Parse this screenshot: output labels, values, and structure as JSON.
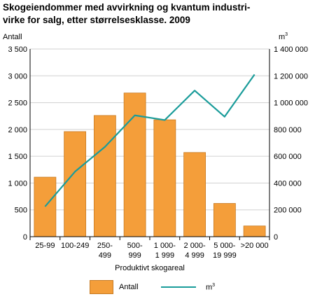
{
  "chart_data": {
    "type": "bar",
    "title_line1": "Skogeiendommer med avvirkning og kvantum industri-",
    "title_line2": "virke for salg, etter størrelsesklasse. 2009",
    "left_axis_label": "Antall",
    "right_axis_label": "m",
    "right_axis_label_sup": "3",
    "xlabel": "Produktivt skogareal",
    "categories": [
      [
        "25-99"
      ],
      [
        "100-249"
      ],
      [
        "250-",
        "499"
      ],
      [
        "500-",
        "999"
      ],
      [
        "1 000-",
        "1 999"
      ],
      [
        "2 000-",
        "4 999"
      ],
      [
        "5 000-",
        "19 999"
      ],
      [
        ">20 000"
      ]
    ],
    "left_ticks": [
      "0",
      "500",
      "1 000",
      "1 500",
      "2 000",
      "2 500",
      "3 000",
      "3 500"
    ],
    "right_ticks": [
      "0",
      "200 000",
      "400 000",
      "600 000",
      "800 000",
      "1 000 000",
      "1 200 000",
      "1 400 000"
    ],
    "ylim_left": [
      0,
      3500
    ],
    "ylim_right": [
      0,
      1400000
    ],
    "series": [
      {
        "name": "Antall",
        "type": "bar",
        "axis": "left",
        "values": [
          1110,
          1960,
          2260,
          2680,
          2180,
          1570,
          620,
          200
        ]
      },
      {
        "name": "m",
        "name_sup": "3",
        "type": "line",
        "axis": "right",
        "values": [
          225000,
          485000,
          670000,
          905000,
          870000,
          1090000,
          895000,
          1210000
        ]
      }
    ],
    "grid": true,
    "legend_position": "bottom",
    "colors": {
      "bar": "#f49e3a",
      "bar_edge": "#c77a22",
      "line": "#1a9c9a",
      "grid": "#d0d0d0"
    }
  }
}
